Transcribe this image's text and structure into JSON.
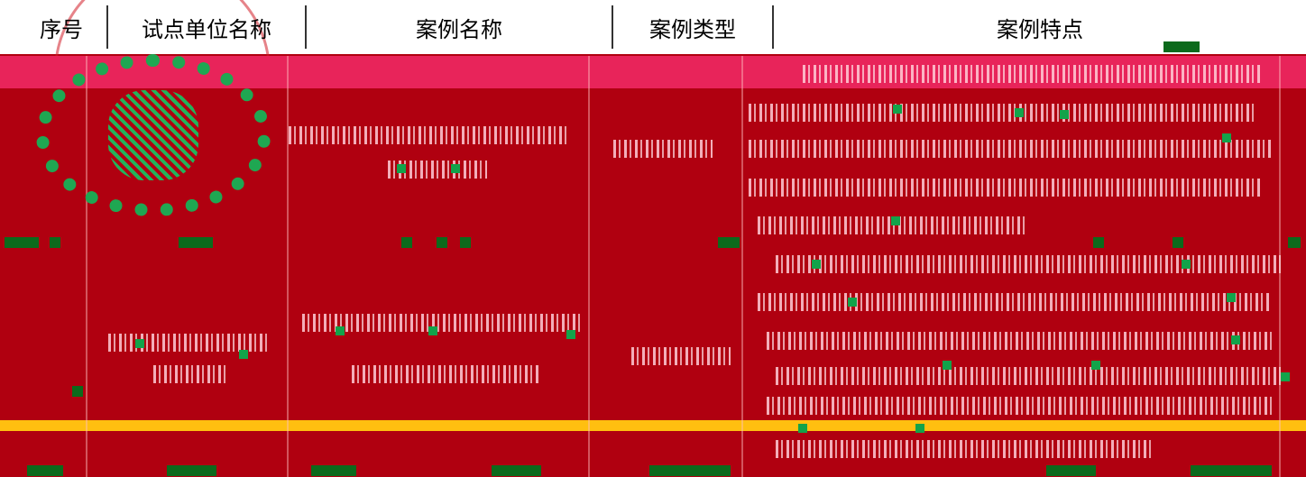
{
  "table": {
    "headers": {
      "index": "序号",
      "unit": "试点单位名称",
      "case_name": "案例名称",
      "case_type": "案例类型",
      "case_features": "案例特点"
    }
  },
  "colors": {
    "header_bg": "#ffffff",
    "body_bg": "#b00010",
    "pink_band": "#e8245a",
    "yellow_band": "#ffbf10",
    "green_noise": "#12a34a"
  }
}
